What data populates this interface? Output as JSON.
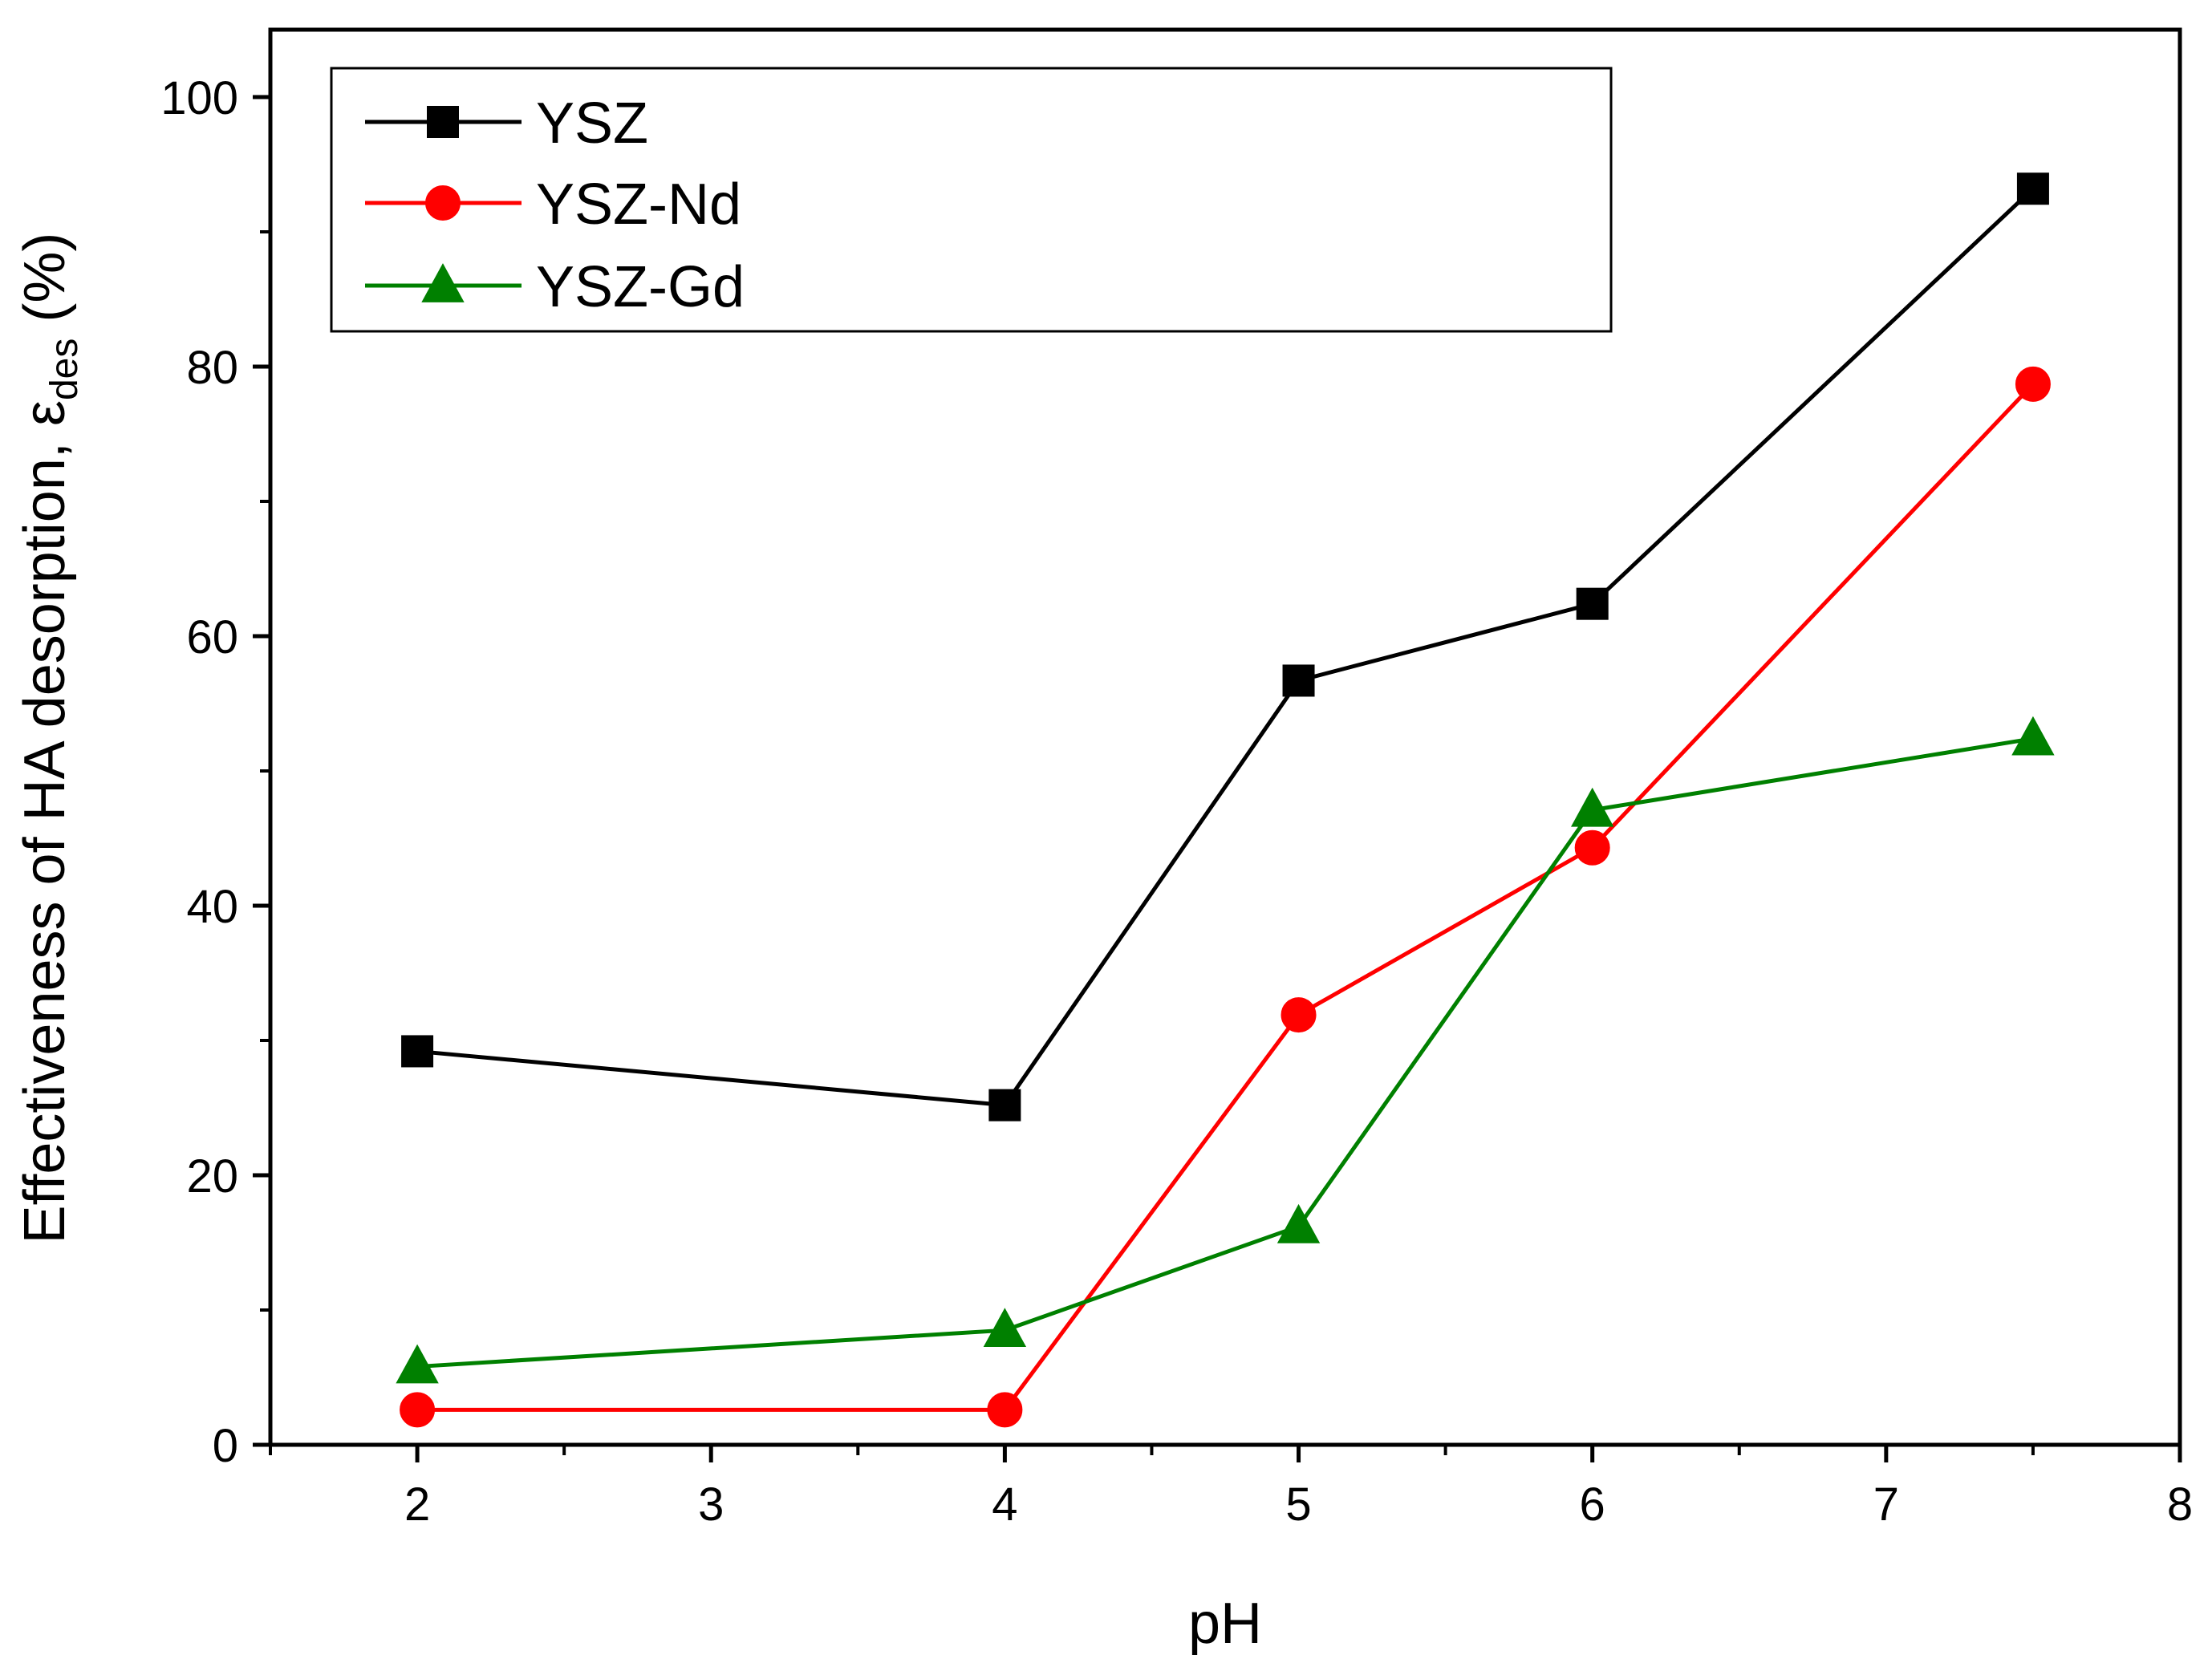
{
  "chart_data": {
    "type": "line",
    "title": "",
    "xlabel": "pH",
    "ylabel": {
      "main": "Effectiveness of HA desorption, ε",
      "subscript": "des",
      "suffix": " (%)"
    },
    "xlim": [
      1.5,
      8
    ],
    "ylim": [
      0,
      105
    ],
    "x_ticks": [
      {
        "value": 2,
        "label": "2",
        "position": 2
      },
      {
        "value": 3,
        "label": "3",
        "position": 3
      },
      {
        "value": 4,
        "label": "4",
        "position": 4
      },
      {
        "value": 5,
        "label": "5",
        "position": 5
      },
      {
        "value": 6,
        "label": "6",
        "position": 6
      },
      {
        "value": 7,
        "label": "7",
        "position": 7
      },
      {
        "value": 8,
        "label": "8",
        "position": 8
      }
    ],
    "x_minor_ticks": [
      1.5,
      2.5,
      3.5,
      4.5,
      5.5,
      6.5,
      7.5
    ],
    "y_ticks": [
      {
        "value": 0,
        "label": "0"
      },
      {
        "value": 20,
        "label": "20"
      },
      {
        "value": 40,
        "label": "40"
      },
      {
        "value": 60,
        "label": "60"
      },
      {
        "value": 80,
        "label": "80"
      },
      {
        "value": 100,
        "label": "100"
      }
    ],
    "y_minor_ticks": [
      10,
      30,
      50,
      70,
      90
    ],
    "x_positions": [
      2,
      4,
      5,
      6,
      7.5
    ],
    "legend_position": "top-left",
    "series": [
      {
        "name": "YSZ",
        "color": "#000000",
        "marker": "square",
        "values": [
          29.2,
          25.2,
          56.7,
          62.4,
          93.2
        ]
      },
      {
        "name": "YSZ-Nd",
        "color": "#ff0000",
        "marker": "circle",
        "values": [
          2.6,
          2.6,
          31.9,
          44.3,
          78.7
        ]
      },
      {
        "name": "YSZ-Gd",
        "color": "#008000",
        "marker": "triangle",
        "values": [
          5.8,
          8.5,
          16.2,
          47.1,
          52.4
        ]
      }
    ]
  }
}
